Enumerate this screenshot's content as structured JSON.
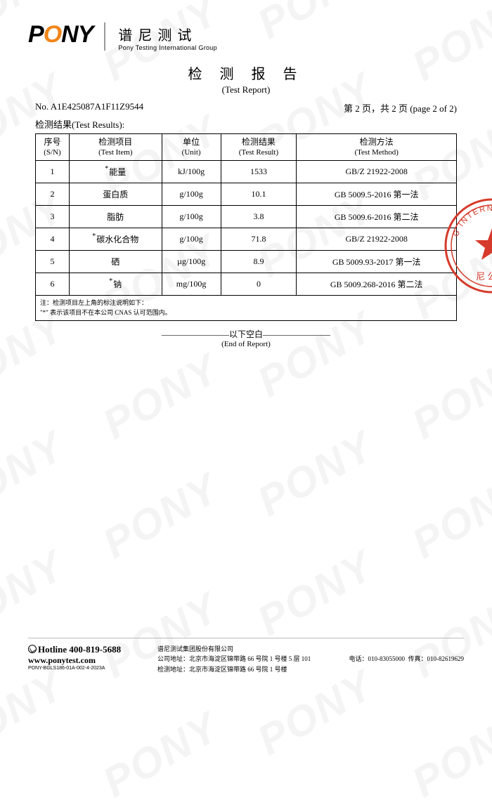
{
  "logo": {
    "text": "PONY",
    "accent_index": 1,
    "cn": "谱尼测试",
    "en": "Pony Testing International Group"
  },
  "title": {
    "cn": "检 测 报 告",
    "en": "(Test Report)"
  },
  "report_no_label": "No.",
  "report_no": "A1E425087A1F11Z9544",
  "page_info": "第 2 页，共 2 页 (page 2 of 2)",
  "results_label_cn": "检测结果",
  "results_label_en": "(Test Results):",
  "table": {
    "columns": [
      {
        "cn": "序号",
        "en": "(S/N)",
        "cls": "col-sn"
      },
      {
        "cn": "检测项目",
        "en": "(Test Item)",
        "cls": "col-item"
      },
      {
        "cn": "单位",
        "en": "(Unit)",
        "cls": "col-unit"
      },
      {
        "cn": "检测结果",
        "en": "(Test Result)",
        "cls": "col-result"
      },
      {
        "cn": "检测方法",
        "en": "(Test Method)",
        "cls": "col-method"
      }
    ],
    "rows": [
      {
        "sn": "1",
        "item": "能量",
        "star": true,
        "unit": "kJ/100g",
        "result": "1533",
        "method": "GB/Z 21922-2008"
      },
      {
        "sn": "2",
        "item": "蛋白质",
        "star": false,
        "unit": "g/100g",
        "result": "10.1",
        "method": "GB 5009.5-2016  第一法"
      },
      {
        "sn": "3",
        "item": "脂肪",
        "star": false,
        "unit": "g/100g",
        "result": "3.8",
        "method": "GB 5009.6-2016  第二法"
      },
      {
        "sn": "4",
        "item": "碳水化合物",
        "star": true,
        "unit": "g/100g",
        "result": "71.8",
        "method": "GB/Z 21922-2008"
      },
      {
        "sn": "5",
        "item": "硒",
        "star": false,
        "unit": "µg/100g",
        "result": "8.9",
        "method": "GB 5009.93-2017  第一法"
      },
      {
        "sn": "6",
        "item": "钠",
        "star": true,
        "unit": "mg/100g",
        "result": "0",
        "method": "GB 5009.268-2016  第二法"
      }
    ]
  },
  "notes": {
    "line1": "注：检测项目左上角的标注说明如下：",
    "line2": "\"*\" 表示该项目不在本公司 CNAS 认可范围内。"
  },
  "end": {
    "cn": "以下空白",
    "en": "(End of Report)"
  },
  "footer": {
    "hotline_label": "Hotline",
    "hotline": "400-819-5688",
    "website": "www.ponytest.com",
    "code": "PONY-BGLS186-01A-002-4-2023A",
    "company": "谱尼测试集团股份有限公司",
    "addr1_label": "公司地址：",
    "addr1": "北京市海淀区锦带路 66 号院 1 号楼 5 层 101",
    "addr2_label": "检测地址：",
    "addr2": "北京市海淀区锦带路 66 号院 1 号楼",
    "tel_label": "电话：",
    "tel": "010-83055000",
    "fax_label": "传真：",
    "fax": "010-82619629"
  },
  "watermark_text": "PONY",
  "colors": {
    "accent": "#f08519",
    "stamp": "#d63a2a",
    "border": "#000000",
    "wm": "rgba(120,120,120,0.08)"
  }
}
